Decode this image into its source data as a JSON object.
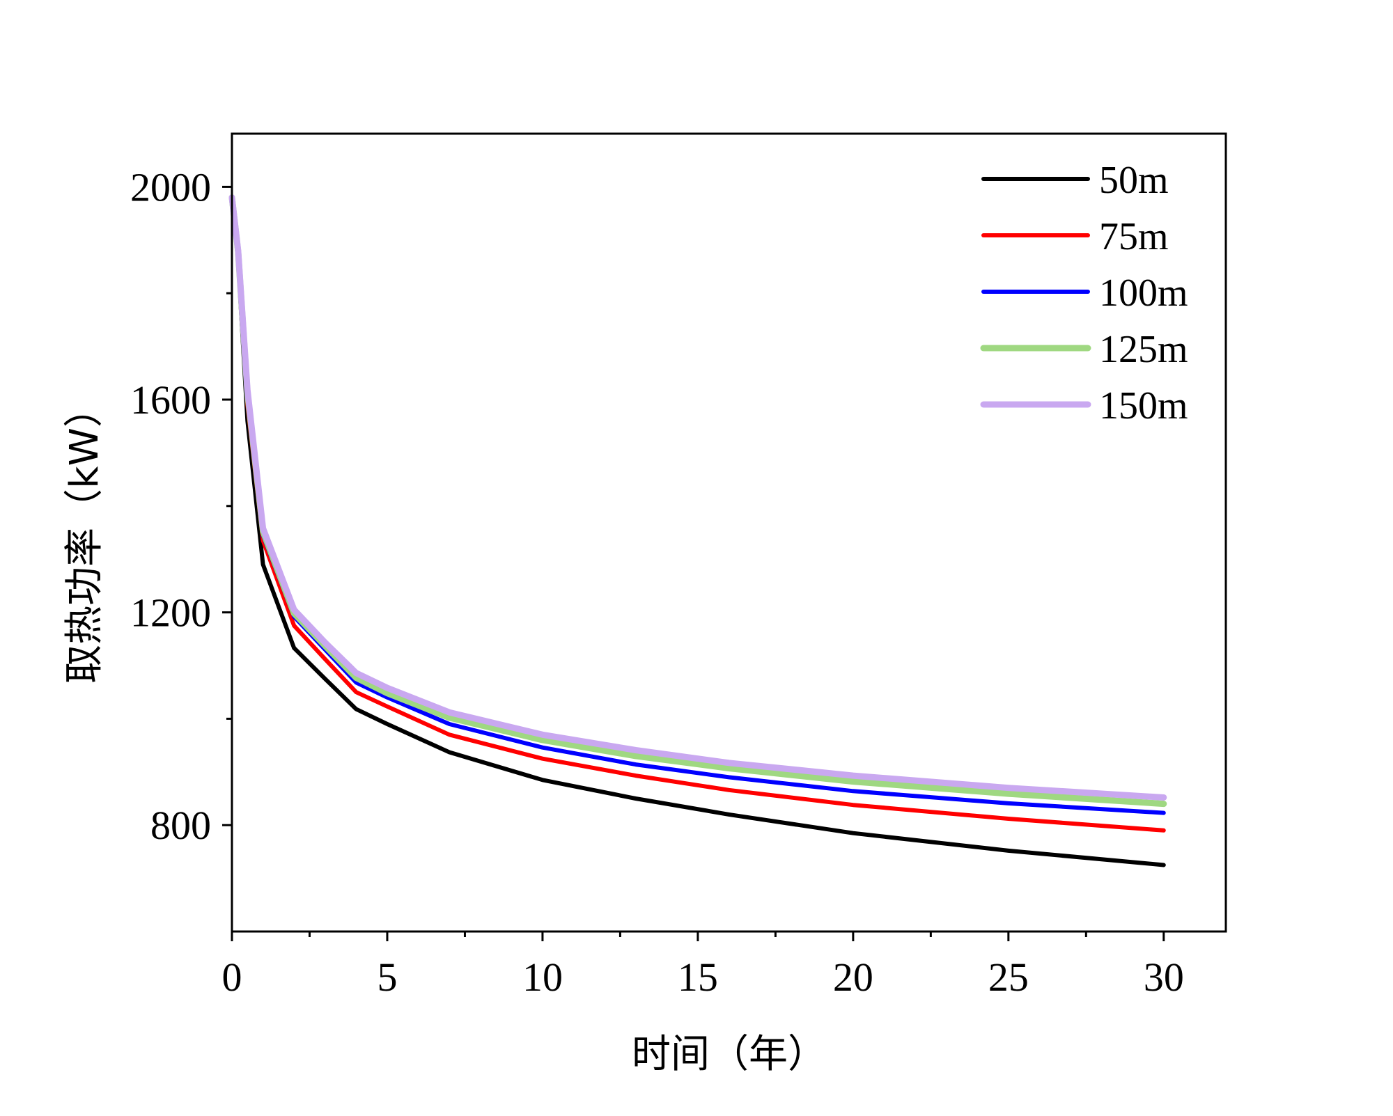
{
  "chart_data": {
    "type": "line",
    "title": "",
    "xlabel": "时间（年）",
    "ylabel": "取热功率（kW）",
    "xlim": [
      0,
      32
    ],
    "ylim": [
      600,
      2100
    ],
    "x_ticks": [
      0,
      5,
      10,
      15,
      20,
      25,
      30
    ],
    "x_tick_labels": [
      "0",
      "5",
      "10",
      "15",
      "20",
      "25",
      "30"
    ],
    "x_minor_ticks": [
      2.5,
      7.5,
      12.5,
      17.5,
      22.5,
      27.5
    ],
    "y_ticks": [
      800,
      1200,
      1600,
      2000
    ],
    "y_tick_labels": [
      "800",
      "1200",
      "1600",
      "2000"
    ],
    "y_minor_ticks": [
      1000,
      1400,
      1800
    ],
    "grid": false,
    "legend_position": "top-right",
    "x": [
      0,
      0.2,
      0.5,
      1,
      2,
      3,
      4,
      5,
      7,
      10,
      13,
      16,
      20,
      25,
      30
    ],
    "series": [
      {
        "name": "50m",
        "color": "#000000",
        "values": [
          1980,
          1860,
          1560,
          1290,
          1133,
          1075,
          1018,
          990,
          937,
          885,
          850,
          820,
          785,
          752,
          725
        ]
      },
      {
        "name": "75m",
        "color": "#ff0000",
        "values": [
          1980,
          1870,
          1590,
          1335,
          1175,
          1112,
          1050,
          1023,
          970,
          925,
          893,
          866,
          838,
          812,
          790
        ]
      },
      {
        "name": "100m",
        "color": "#0000ff",
        "values": [
          1980,
          1875,
          1605,
          1345,
          1192,
          1130,
          1068,
          1040,
          990,
          946,
          914,
          890,
          864,
          841,
          823
        ]
      },
      {
        "name": "125m",
        "color": "#9fd881",
        "values": [
          1980,
          1878,
          1612,
          1352,
          1198,
          1137,
          1077,
          1048,
          1002,
          960,
          930,
          907,
          882,
          859,
          840
        ]
      },
      {
        "name": "150m",
        "color": "#c9a8f0",
        "values": [
          1980,
          1880,
          1618,
          1358,
          1205,
          1143,
          1086,
          1058,
          1012,
          970,
          941,
          917,
          893,
          870,
          852
        ]
      }
    ]
  }
}
